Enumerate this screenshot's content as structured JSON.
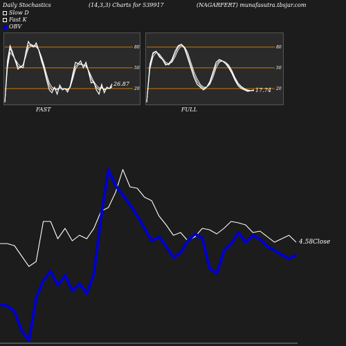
{
  "header": {
    "left": "Daily Stochastics",
    "center": "(14,3,3) Charts for 539917",
    "right": "(NAGARFERT) munafasutra.tbsjar.com"
  },
  "legend": [
    {
      "label": "Slow  D",
      "color": "#ffffff"
    },
    {
      "label": "Fast K",
      "color": "#ffffff"
    },
    {
      "label": "OBV",
      "color": "#0000cc"
    }
  ],
  "colors": {
    "background": "#1c1c1c",
    "panel": "#2a2a2a",
    "band": "#cc7a00",
    "obv": "#0000cc",
    "price": "#ffffff"
  },
  "chart_data": [
    {
      "type": "line",
      "name": "FAST",
      "panel_label": "FAST",
      "ylim": [
        0,
        100
      ],
      "levels": [
        20,
        50,
        80
      ],
      "level_labels": [
        "80",
        "50",
        "20"
      ],
      "last_value_label": "26.87",
      "series": [
        {
          "values": [
            0,
            60,
            82,
            72,
            60,
            48,
            52,
            50,
            72,
            88,
            82,
            80,
            86,
            75,
            60,
            48,
            32,
            18,
            14,
            22,
            12,
            25,
            18,
            20,
            15,
            24,
            42,
            58,
            56,
            60,
            50,
            58,
            44,
            28,
            30,
            18,
            12,
            26,
            14,
            22,
            20,
            27
          ]
        },
        {
          "values": [
            0,
            55,
            78,
            70,
            62,
            52,
            50,
            55,
            70,
            82,
            84,
            82,
            82,
            76,
            64,
            50,
            36,
            24,
            18,
            20,
            18,
            22,
            20,
            20,
            18,
            22,
            38,
            52,
            56,
            56,
            54,
            54,
            46,
            34,
            28,
            22,
            18,
            22,
            18,
            20,
            20,
            24
          ]
        },
        {
          "values": [
            0,
            50,
            72,
            68,
            62,
            56,
            52,
            54,
            66,
            78,
            82,
            82,
            80,
            76,
            66,
            54,
            40,
            28,
            22,
            20,
            20,
            20,
            20,
            20,
            19,
            22,
            34,
            48,
            54,
            55,
            54,
            52,
            46,
            38,
            30,
            25,
            21,
            21,
            19,
            20,
            20,
            22
          ]
        }
      ]
    },
    {
      "type": "line",
      "name": "FULL",
      "panel_label": "FULL",
      "ylim": [
        0,
        100
      ],
      "levels": [
        20,
        50,
        80
      ],
      "level_labels": [
        "80",
        "50",
        "20"
      ],
      "last_value_label": "17.74",
      "series": [
        {
          "values": [
            0,
            55,
            72,
            74,
            66,
            62,
            54,
            56,
            62,
            74,
            82,
            84,
            78,
            64,
            50,
            36,
            26,
            22,
            18,
            22,
            30,
            44,
            58,
            62,
            60,
            56,
            50,
            42,
            32,
            24,
            20,
            18,
            16,
            17,
            18
          ]
        },
        {
          "values": [
            0,
            52,
            70,
            74,
            68,
            62,
            56,
            54,
            60,
            70,
            80,
            84,
            80,
            68,
            54,
            40,
            30,
            24,
            20,
            22,
            28,
            40,
            54,
            60,
            60,
            58,
            52,
            44,
            34,
            26,
            22,
            19,
            17,
            17,
            17
          ]
        },
        {
          "values": [
            0,
            48,
            66,
            72,
            70,
            64,
            58,
            56,
            58,
            66,
            76,
            82,
            80,
            72,
            58,
            44,
            34,
            26,
            22,
            22,
            26,
            36,
            50,
            58,
            60,
            58,
            54,
            46,
            36,
            28,
            23,
            20,
            18,
            17,
            17
          ]
        }
      ]
    },
    {
      "type": "line",
      "name": "OBV",
      "series": [
        {
          "name": "Close",
          "color": "#ffffff",
          "values": [
            352,
            352,
            355,
            370,
            385,
            378,
            320,
            320,
            345,
            330,
            348,
            340,
            345,
            330,
            305,
            300,
            278,
            245,
            270,
            272,
            285,
            290,
            312,
            325,
            340,
            336,
            348,
            342,
            330,
            332,
            338,
            330,
            320,
            322,
            325,
            336,
            334,
            342,
            350,
            345,
            340,
            350
          ]
        },
        {
          "name": "OBV",
          "color": "#0000cc",
          "values": [
            440,
            442,
            450,
            478,
            492,
            430,
            405,
            392,
            412,
            398,
            420,
            410,
            424,
            395,
            312,
            245,
            268,
            282,
            296,
            312,
            330,
            348,
            342,
            356,
            372,
            365,
            348,
            338,
            344,
            388,
            395,
            362,
            352,
            336,
            350,
            340,
            346,
            356,
            362,
            368,
            374,
            368
          ]
        }
      ],
      "close_label": "4.58Close"
    }
  ]
}
